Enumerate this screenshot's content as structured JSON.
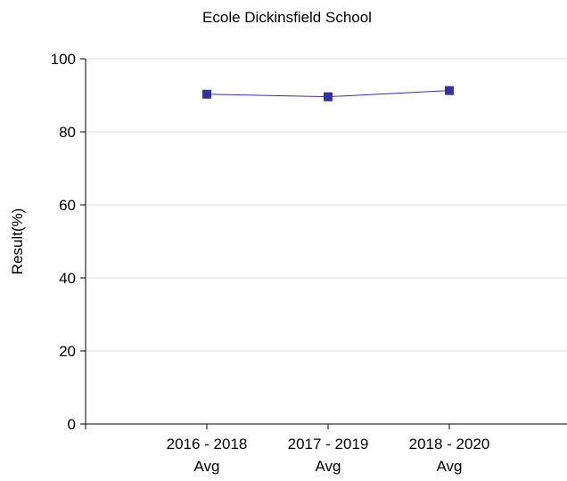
{
  "chart_data": {
    "type": "line",
    "title": "Ecole Dickinsfield School",
    "xlabel": "",
    "ylabel": "Result(%)",
    "ylim": [
      0,
      100
    ],
    "yticks": [
      0,
      20,
      40,
      60,
      80,
      100
    ],
    "grid": true,
    "legend": "none",
    "categories": [
      [
        "2016 - 2018",
        "Avg"
      ],
      [
        "2017 - 2019",
        "Avg"
      ],
      [
        "2018 - 2020",
        "Avg"
      ]
    ],
    "series": [
      {
        "values": [
          90.3,
          89.6,
          91.3
        ],
        "color": "#333399"
      }
    ]
  }
}
